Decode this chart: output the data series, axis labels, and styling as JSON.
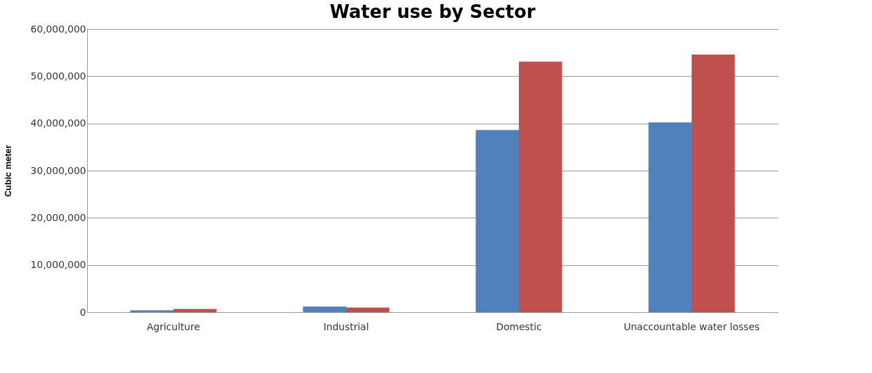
{
  "chart_data": {
    "type": "bar",
    "title": "Water use by Sector",
    "ylabel": "Cubic meter",
    "categories": [
      "Agriculture",
      "Industrial",
      "Domestic",
      "Unaccountable water losses"
    ],
    "series": [
      {
        "color": "#4f81bd",
        "values": [
          400000,
          1200000,
          38600000,
          40200000
        ]
      },
      {
        "color": "#c0504d",
        "values": [
          700000,
          1000000,
          53100000,
          54600000
        ]
      }
    ],
    "ylim": [
      0,
      60000000
    ],
    "yticks": [
      0,
      {
        "value": 10000000,
        "label": "10,000,000"
      },
      {
        "value": 20000000,
        "label": "20,000,000"
      },
      {
        "value": 30000000,
        "label": "30,000,000"
      },
      {
        "value": 40000000,
        "label": "40,000,000"
      },
      {
        "value": 50000000,
        "label": "50,000,000"
      },
      {
        "value": 60000000,
        "label": "60,000,000"
      }
    ],
    "grid": "y",
    "legend": false
  }
}
